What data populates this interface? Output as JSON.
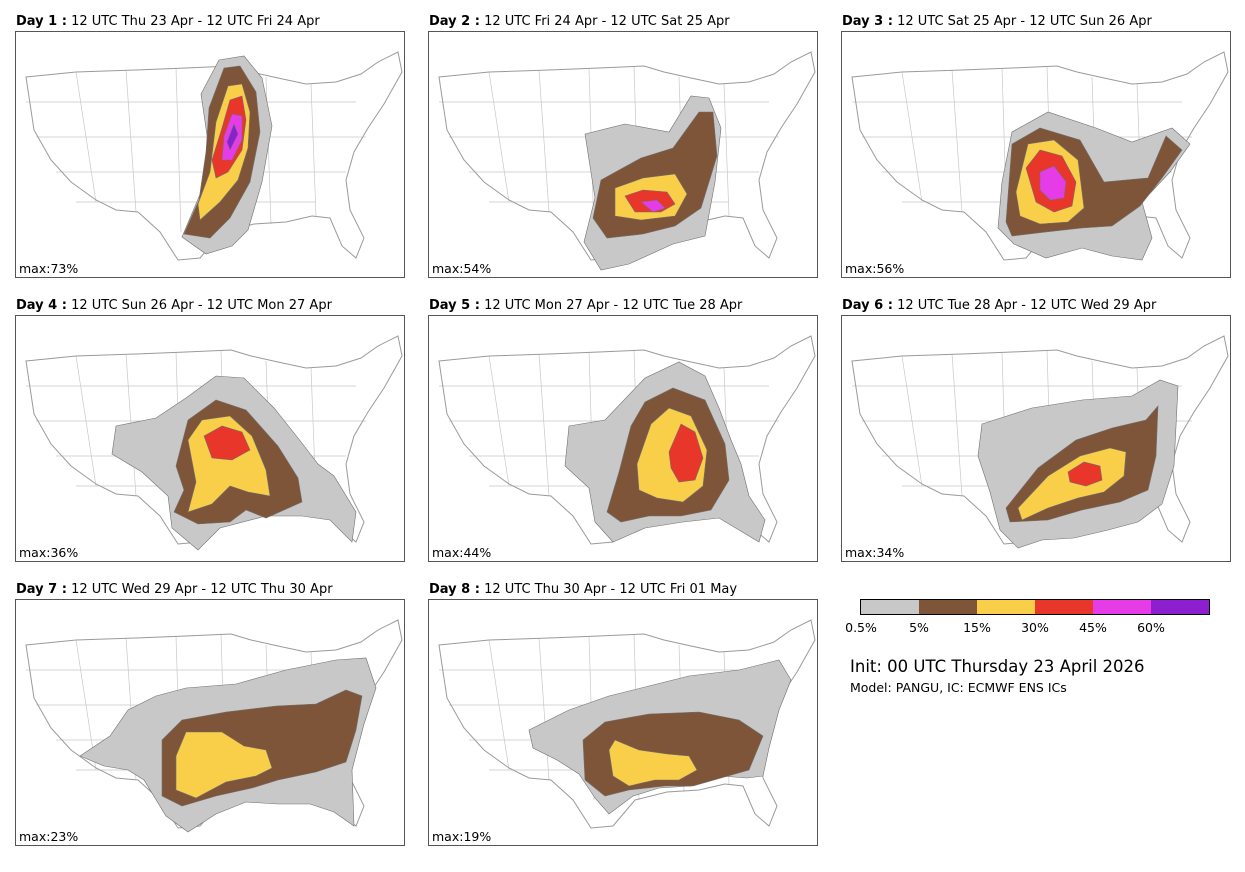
{
  "panels": [
    {
      "day": "Day 1 :",
      "period": "12 UTC Thu 23 Apr - 12 UTC Fri 24 Apr",
      "max": "max:73%"
    },
    {
      "day": "Day 2 :",
      "period": "12 UTC Fri 24 Apr - 12 UTC Sat 25 Apr",
      "max": "max:54%"
    },
    {
      "day": "Day 3 :",
      "period": "12 UTC Sat 25 Apr - 12 UTC Sun 26 Apr",
      "max": "max:56%"
    },
    {
      "day": "Day 4 :",
      "period": "12 UTC Sun 26 Apr - 12 UTC Mon 27 Apr",
      "max": "max:36%"
    },
    {
      "day": "Day 5 :",
      "period": "12 UTC Mon 27 Apr - 12 UTC Tue 28 Apr",
      "max": "max:44%"
    },
    {
      "day": "Day 6 :",
      "period": "12 UTC Tue 28 Apr - 12 UTC Wed 29 Apr",
      "max": "max:34%"
    },
    {
      "day": "Day 7 :",
      "period": "12 UTC Wed 29 Apr - 12 UTC Thu 30 Apr",
      "max": "max:23%"
    },
    {
      "day": "Day 8 :",
      "period": "12 UTC Thu 30 Apr - 12 UTC Fri 01 May",
      "max": "max:19%"
    }
  ],
  "legend": {
    "colors": [
      "#c8c8c8",
      "#7f5539",
      "#f9cf4a",
      "#e8362b",
      "#e53ce8",
      "#8c1fd0"
    ],
    "ticks": [
      "0.5%",
      "5%",
      "15%",
      "30%",
      "45%",
      "60%"
    ]
  },
  "init": "Init: 00 UTC Thursday 23 April 2026",
  "model": "Model: PANGU, IC: ECMWF ENS ICs"
}
